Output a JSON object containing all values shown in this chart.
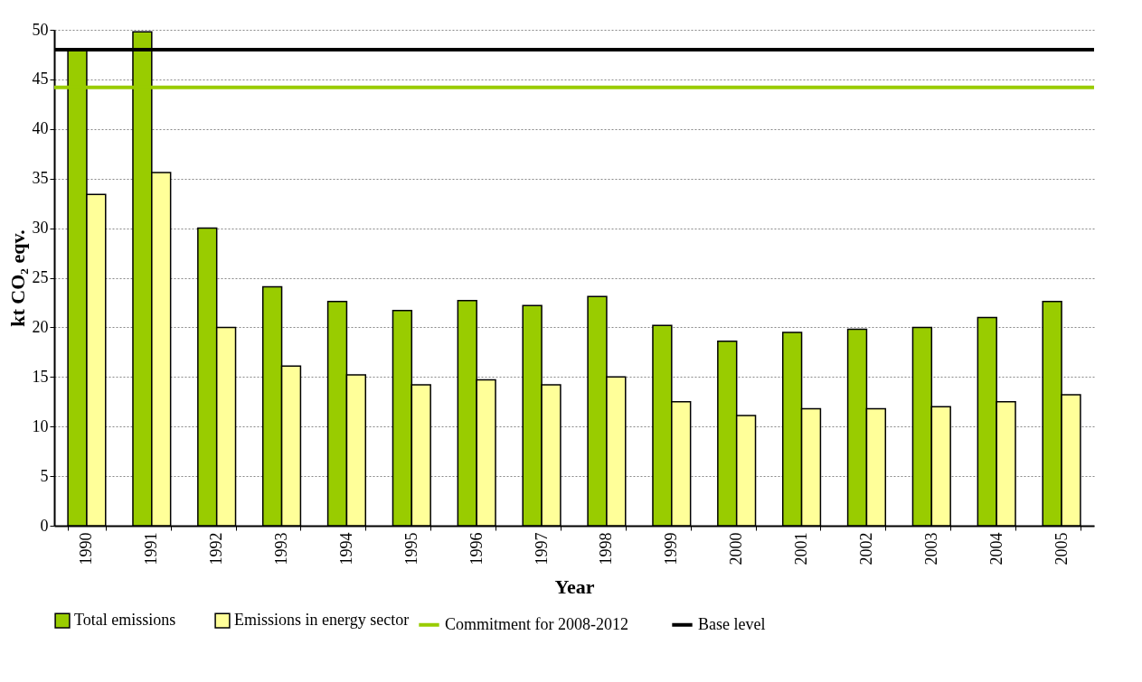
{
  "chart_data": {
    "type": "bar",
    "xlabel": "Year",
    "ylabel": "kt CO₂ eqv.",
    "categories": [
      "1990",
      "1991",
      "1992",
      "1993",
      "1994",
      "1995",
      "1996",
      "1997",
      "1998",
      "1999",
      "2000",
      "2001",
      "2002",
      "2003",
      "2004",
      "2005"
    ],
    "series": [
      {
        "name": "Total emissions",
        "color": "#99cc00",
        "values": [
          48.1,
          49.8,
          30.0,
          24.1,
          22.6,
          21.7,
          22.7,
          22.2,
          23.1,
          20.2,
          18.6,
          19.5,
          19.8,
          20.0,
          21.0,
          22.6
        ]
      },
      {
        "name": "Emissions in energy sector",
        "color": "#ffff99",
        "values": [
          33.4,
          35.6,
          20.0,
          16.1,
          15.2,
          14.2,
          14.7,
          14.2,
          15.0,
          12.5,
          11.1,
          11.8,
          11.8,
          12.0,
          12.5,
          13.2
        ]
      }
    ],
    "ref_lines": [
      {
        "axis": "y",
        "value": 44.2,
        "label": "Commitment for 2008-2012",
        "color": "#99cc00"
      },
      {
        "axis": "y",
        "value": 48.0,
        "label": "Base level",
        "color": "#000000"
      }
    ],
    "ylim": [
      0,
      50
    ],
    "yticks": [
      0,
      5,
      10,
      15,
      20,
      25,
      30,
      35,
      40,
      45,
      50
    ],
    "grid": "y",
    "legend": "bottom"
  }
}
